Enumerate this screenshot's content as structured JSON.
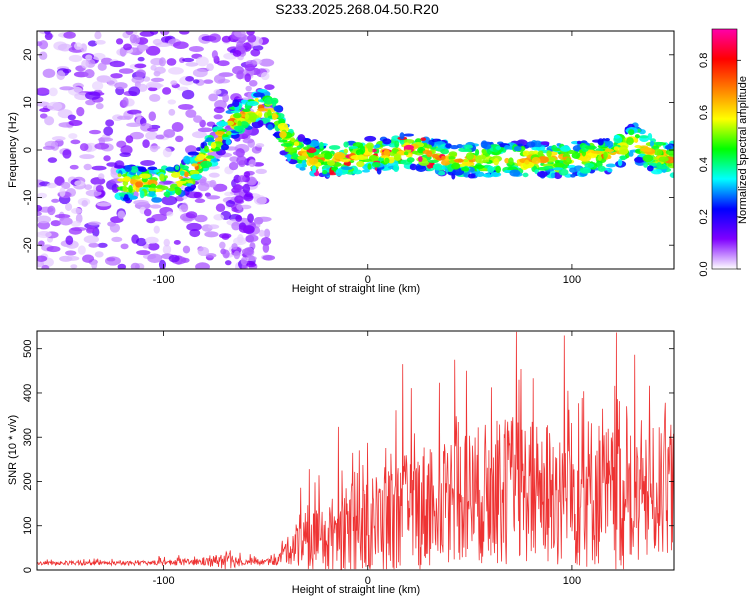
{
  "title": "S233.2025.268.04.50.R20",
  "chart_data": [
    {
      "type": "heatmap",
      "panel": "spectrogram",
      "xlabel": "Height of straight line (km)",
      "ylabel": "Frequency (Hz)",
      "xlim": [
        -162,
        150
      ],
      "ylim": [
        -25,
        25
      ],
      "xticks": [
        -100,
        0,
        100
      ],
      "yticks": [
        -20,
        -10,
        0,
        10,
        20
      ],
      "colorbar": {
        "label": "Normalized spectral amplitude",
        "range": [
          0.0,
          0.92
        ],
        "ticks": [
          "0.0",
          "0.2",
          "0.4",
          "0.6",
          "0.8"
        ],
        "colormap": [
          "#ffffff",
          "#7f00ff",
          "#0000ff",
          "#00ffff",
          "#00ff00",
          "#ffff00",
          "#ff7f00",
          "#ff0000",
          "#ff00aa"
        ]
      },
      "ridge_trace": {
        "height_km": [
          -122,
          -110,
          -100,
          -90,
          -80,
          -72,
          -66,
          -58,
          -52,
          -46,
          -40,
          -32,
          -22,
          -12,
          0,
          10,
          20,
          30,
          40,
          60,
          80,
          100,
          120,
          130,
          140,
          150
        ],
        "frequency_hz": [
          -7,
          -7,
          -7,
          -6,
          -2,
          3,
          6,
          8,
          9,
          8,
          2,
          -1,
          -2,
          -2,
          -1,
          -1,
          0,
          -1,
          -2,
          -2,
          -2,
          -2,
          -1,
          2,
          -1,
          -2
        ]
      },
      "noise_region_km": [
        -162,
        -48
      ]
    },
    {
      "type": "line",
      "panel": "snr",
      "xlabel": "Height of straight line (km)",
      "ylabel": "SNR (10 * v/v)",
      "xlim": [
        -162,
        150
      ],
      "ylim": [
        0,
        540
      ],
      "xticks": [
        -100,
        0,
        100
      ],
      "yticks": [
        0,
        100,
        200,
        300,
        400,
        500
      ],
      "color": "#ee3333",
      "envelope": {
        "x": [
          -162,
          -120,
          -80,
          -70,
          -60,
          -45,
          -40,
          -35,
          -30,
          -20,
          -10,
          0,
          10,
          20,
          30,
          40,
          50,
          60,
          70,
          80,
          90,
          100,
          110,
          120,
          130,
          140,
          150
        ],
        "baseline": [
          15,
          15,
          18,
          22,
          18,
          18,
          40,
          60,
          55,
          70,
          90,
          100,
          110,
          130,
          150,
          160,
          170,
          170,
          180,
          180,
          170,
          170,
          180,
          160,
          150,
          170,
          190
        ],
        "peak_amplitude": [
          8,
          8,
          14,
          40,
          12,
          14,
          50,
          90,
          120,
          160,
          180,
          200,
          230,
          250,
          270,
          260,
          280,
          300,
          310,
          300,
          310,
          320,
          320,
          300,
          280,
          280,
          260
        ]
      },
      "n_samples": 1250
    }
  ]
}
